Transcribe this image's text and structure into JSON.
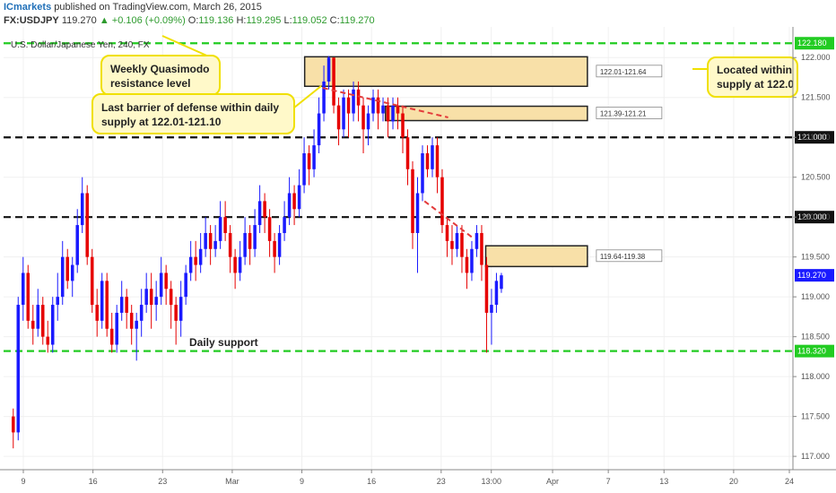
{
  "header": {
    "brand": "ICmarkets",
    "published": "published on TradingView.com, March 26, 2015",
    "symbol": "FX:USDJPY",
    "last": "119.270",
    "change": "+0.106 (+0.09%)",
    "o_label": "O:",
    "o_value": "119.136",
    "h_label": "H:",
    "h_value": "119.295",
    "l_label": "L:",
    "l_value": "119.052",
    "c_label": "C:",
    "c_value": "119.270"
  },
  "colors": {
    "bull": "#1a1aff",
    "bear": "#e60000",
    "support": "#22cc22",
    "level": "#111111",
    "zone_fill": "#f8e0a8",
    "zone_border": "#222222",
    "callout_fill": "#fff9c9",
    "callout_border": "#f0e000",
    "trendline": "#e33b3b"
  },
  "chart_data": {
    "type": "candlestick",
    "title": "U.S. Dollar/Japanese Yen, 240, FX",
    "ylim": [
      116.9,
      122.25
    ],
    "y_ticks": [
      "122.000",
      "121.500",
      "121.000",
      "120.500",
      "120.000",
      "119.500",
      "119.000",
      "118.500",
      "118.000",
      "117.500",
      "117.000"
    ],
    "x_ticks": [
      {
        "label": "9",
        "t": 0
      },
      {
        "label": "16",
        "t": 5
      },
      {
        "label": "23",
        "t": 10
      },
      {
        "label": "Mar",
        "t": 15
      },
      {
        "label": "9",
        "t": 20
      },
      {
        "label": "16",
        "t": 25
      },
      {
        "label": "23",
        "t": 30
      },
      {
        "label": "13:00",
        "t": 33.6
      },
      {
        "label": "Apr",
        "t": 38
      },
      {
        "label": "7",
        "t": 42
      },
      {
        "label": "13",
        "t": 46
      },
      {
        "label": "20",
        "t": 51
      },
      {
        "label": "24",
        "t": 55
      }
    ],
    "last_t": 34.5,
    "series": [
      [
        117.5,
        117.3,
        117.6,
        117.1
      ],
      [
        117.3,
        118.9,
        119.0,
        117.2
      ],
      [
        118.9,
        119.3,
        119.5,
        118.7
      ],
      [
        119.3,
        118.7,
        119.4,
        118.6
      ],
      [
        118.7,
        118.6,
        118.9,
        118.4
      ],
      [
        118.6,
        118.9,
        119.1,
        118.5
      ],
      [
        118.9,
        118.5,
        119.0,
        118.4
      ],
      [
        118.5,
        118.4,
        118.7,
        118.3
      ],
      [
        118.4,
        118.9,
        119.0,
        118.3
      ],
      [
        118.9,
        119.0,
        119.3,
        118.7
      ],
      [
        119.0,
        119.5,
        119.7,
        118.9
      ],
      [
        119.5,
        119.2,
        119.6,
        119.1
      ],
      [
        119.2,
        119.4,
        119.5,
        119.0
      ],
      [
        119.4,
        119.9,
        120.1,
        119.3
      ],
      [
        119.9,
        120.3,
        120.5,
        119.8
      ],
      [
        120.3,
        119.5,
        120.4,
        119.4
      ],
      [
        119.5,
        118.9,
        119.6,
        118.8
      ],
      [
        118.9,
        118.7,
        119.1,
        118.5
      ],
      [
        118.7,
        119.2,
        119.3,
        118.6
      ],
      [
        119.2,
        118.6,
        119.3,
        118.5
      ],
      [
        118.6,
        118.4,
        118.8,
        118.3
      ],
      [
        118.4,
        118.8,
        118.9,
        118.3
      ],
      [
        118.8,
        119.0,
        119.2,
        118.7
      ],
      [
        119.0,
        118.8,
        119.1,
        118.6
      ],
      [
        118.8,
        118.6,
        118.9,
        118.4
      ],
      [
        118.6,
        118.7,
        118.8,
        118.2
      ],
      [
        118.7,
        118.9,
        119.1,
        118.5
      ],
      [
        118.9,
        119.1,
        119.3,
        118.8
      ],
      [
        119.1,
        118.9,
        119.3,
        118.6
      ],
      [
        118.9,
        119.0,
        119.2,
        118.7
      ],
      [
        119.0,
        119.3,
        119.5,
        118.9
      ],
      [
        119.3,
        119.1,
        119.4,
        118.9
      ],
      [
        119.1,
        118.9,
        119.2,
        118.6
      ],
      [
        118.9,
        118.7,
        119.0,
        118.4
      ],
      [
        118.7,
        119.0,
        119.2,
        118.5
      ],
      [
        119.0,
        119.3,
        119.4,
        118.9
      ],
      [
        119.3,
        119.5,
        119.7,
        119.2
      ],
      [
        119.5,
        119.4,
        119.7,
        119.2
      ],
      [
        119.4,
        119.6,
        119.8,
        119.3
      ],
      [
        119.6,
        119.8,
        120.0,
        119.5
      ],
      [
        119.8,
        119.6,
        119.9,
        119.4
      ],
      [
        119.6,
        119.7,
        119.9,
        119.5
      ],
      [
        119.7,
        120.0,
        120.2,
        119.6
      ],
      [
        120.0,
        119.8,
        120.2,
        119.7
      ],
      [
        119.8,
        119.5,
        119.9,
        119.3
      ],
      [
        119.5,
        119.3,
        119.6,
        119.1
      ],
      [
        119.3,
        119.5,
        119.7,
        119.2
      ],
      [
        119.5,
        119.8,
        120.0,
        119.4
      ],
      [
        119.8,
        119.6,
        119.9,
        119.4
      ],
      [
        119.6,
        119.9,
        120.1,
        119.5
      ],
      [
        119.9,
        120.2,
        120.4,
        119.8
      ],
      [
        120.2,
        120.0,
        120.3,
        119.8
      ],
      [
        120.0,
        119.7,
        120.1,
        119.5
      ],
      [
        119.7,
        119.5,
        119.8,
        119.3
      ],
      [
        119.5,
        119.8,
        119.9,
        119.4
      ],
      [
        119.8,
        120.0,
        120.2,
        119.7
      ],
      [
        120.0,
        120.3,
        120.5,
        119.9
      ],
      [
        120.3,
        120.1,
        120.4,
        119.9
      ],
      [
        120.1,
        120.4,
        120.6,
        120.0
      ],
      [
        120.4,
        120.8,
        121.0,
        120.3
      ],
      [
        120.8,
        120.6,
        120.9,
        120.4
      ],
      [
        120.6,
        120.9,
        121.1,
        120.5
      ],
      [
        120.9,
        121.3,
        121.5,
        120.8
      ],
      [
        121.3,
        121.7,
        121.9,
        121.2
      ],
      [
        121.7,
        122.0,
        122.02,
        121.6
      ],
      [
        122.0,
        121.4,
        122.0,
        121.3
      ],
      [
        121.4,
        121.1,
        121.5,
        120.9
      ],
      [
        121.1,
        121.5,
        121.6,
        121.0
      ],
      [
        121.5,
        121.3,
        121.6,
        121.0
      ],
      [
        121.3,
        121.6,
        121.7,
        121.2
      ],
      [
        121.6,
        121.4,
        121.7,
        121.2
      ],
      [
        121.4,
        121.1,
        121.5,
        120.8
      ],
      [
        121.1,
        121.3,
        121.4,
        120.9
      ],
      [
        121.3,
        121.5,
        121.6,
        121.2
      ],
      [
        121.5,
        121.3,
        121.6,
        121.1
      ],
      [
        121.3,
        121.4,
        121.5,
        121.2
      ],
      [
        121.4,
        121.2,
        121.5,
        121.0
      ],
      [
        121.2,
        121.4,
        121.5,
        121.1
      ],
      [
        121.4,
        121.3,
        121.5,
        121.1
      ],
      [
        121.3,
        121.0,
        121.4,
        120.8
      ],
      [
        121.0,
        120.6,
        121.1,
        120.4
      ],
      [
        120.6,
        119.8,
        120.7,
        119.6
      ],
      [
        119.8,
        120.3,
        120.5,
        119.3
      ],
      [
        120.3,
        120.8,
        120.9,
        120.2
      ],
      [
        120.8,
        120.6,
        120.9,
        120.5
      ],
      [
        120.6,
        120.9,
        121.0,
        120.5
      ],
      [
        120.9,
        120.5,
        121.0,
        120.3
      ],
      [
        120.5,
        119.9,
        120.6,
        119.8
      ],
      [
        119.9,
        119.7,
        120.0,
        119.5
      ],
      [
        119.7,
        119.6,
        119.9,
        119.4
      ],
      [
        119.6,
        119.8,
        119.9,
        119.5
      ],
      [
        119.8,
        119.5,
        119.9,
        119.3
      ],
      [
        119.5,
        119.3,
        119.6,
        119.1
      ],
      [
        119.3,
        119.6,
        119.7,
        119.2
      ],
      [
        119.6,
        119.8,
        119.9,
        119.5
      ],
      [
        119.8,
        119.4,
        119.9,
        119.2
      ],
      [
        119.4,
        118.8,
        119.5,
        118.3
      ],
      [
        118.8,
        118.9,
        119.1,
        118.4
      ],
      [
        118.9,
        119.2,
        119.3,
        118.8
      ],
      [
        119.1,
        119.27,
        119.3,
        119.05
      ]
    ],
    "levels": [
      {
        "label": "122.180",
        "value": 122.18,
        "kind": "support"
      },
      {
        "label": "121.000",
        "value": 121.0,
        "kind": "level"
      },
      {
        "label": "120.000",
        "value": 120.0,
        "kind": "level"
      },
      {
        "label": "118.320",
        "value": 118.32,
        "kind": "support"
      }
    ],
    "zones": [
      {
        "label": "122.01-121.64",
        "top": 122.01,
        "bottom": 121.64,
        "t0": 20.2,
        "t1": 40.5
      },
      {
        "label": "121.39-121.21",
        "top": 121.39,
        "bottom": 121.21,
        "t0": 26.0,
        "t1": 40.5
      },
      {
        "label": "119.64-119.38",
        "top": 119.64,
        "bottom": 119.38,
        "t0": 33.2,
        "t1": 40.5
      }
    ],
    "trendlines": [
      {
        "t0": 21.5,
        "v0": 121.62,
        "t1": 30.5,
        "v1": 121.25
      },
      {
        "t0": 28.8,
        "v0": 120.2,
        "t1": 32.2,
        "v1": 119.75
      }
    ],
    "annotations": [
      "Weekly Quasimodo resistance level",
      "Last barrier of defense within daily supply at 122.01-121.10",
      "Located within supply at 122.0",
      "Daily support"
    ],
    "last_price": "119.270"
  },
  "callouts": {
    "weekly_l1": "Weekly Quasimodo",
    "weekly_l2": "resistance level",
    "barrier_l1": "Last barrier of defense within daily",
    "barrier_l2": "supply at 122.01-121.10",
    "located_l1": "Located within",
    "located_l2": "supply at 122.0",
    "daily_support": "Daily support"
  }
}
